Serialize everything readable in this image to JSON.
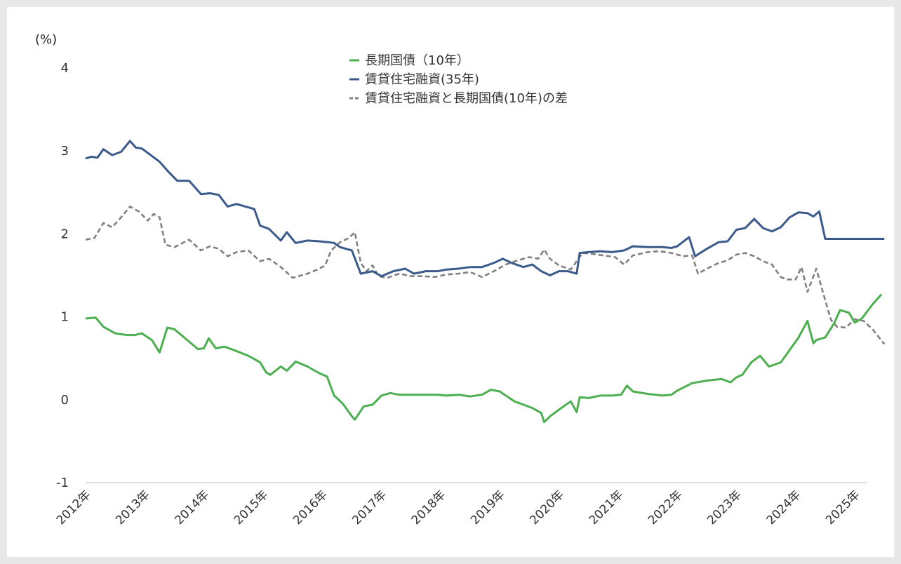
{
  "chart_data": {
    "type": "line",
    "unit_label": "(%)",
    "ylim": [
      -1,
      4
    ],
    "yticks": [
      "4",
      "3",
      "2",
      "1",
      "0",
      "-1"
    ],
    "xlim": [
      2012.0,
      2025.2
    ],
    "xticks": [
      {
        "x": 2012,
        "label": "2012年"
      },
      {
        "x": 2013,
        "label": "2013年"
      },
      {
        "x": 2014,
        "label": "2014年"
      },
      {
        "x": 2015,
        "label": "2015年"
      },
      {
        "x": 2016,
        "label": "2016年"
      },
      {
        "x": 2017,
        "label": "2017年"
      },
      {
        "x": 2018,
        "label": "2018年"
      },
      {
        "x": 2019,
        "label": "2019年"
      },
      {
        "x": 2020,
        "label": "2020年"
      },
      {
        "x": 2021,
        "label": "2021年"
      },
      {
        "x": 2022,
        "label": "2022年"
      },
      {
        "x": 2023,
        "label": "2023年"
      },
      {
        "x": 2024,
        "label": "2024年"
      },
      {
        "x": 2025,
        "label": "2025年"
      }
    ],
    "legend_position": "top-center",
    "series": [
      {
        "name": "長期国債（10年）",
        "color": "#4caf50",
        "style": "solid",
        "points": [
          [
            2012.0,
            0.98
          ],
          [
            2012.17,
            0.99
          ],
          [
            2012.3,
            0.88
          ],
          [
            2012.5,
            0.8
          ],
          [
            2012.7,
            0.78
          ],
          [
            2012.83,
            0.78
          ],
          [
            2012.95,
            0.8
          ],
          [
            2013.12,
            0.72
          ],
          [
            2013.25,
            0.57
          ],
          [
            2013.38,
            0.87
          ],
          [
            2013.5,
            0.85
          ],
          [
            2013.75,
            0.7
          ],
          [
            2013.9,
            0.61
          ],
          [
            2014.0,
            0.62
          ],
          [
            2014.08,
            0.74
          ],
          [
            2014.2,
            0.62
          ],
          [
            2014.35,
            0.64
          ],
          [
            2014.5,
            0.6
          ],
          [
            2014.75,
            0.53
          ],
          [
            2014.95,
            0.45
          ],
          [
            2015.05,
            0.33
          ],
          [
            2015.12,
            0.3
          ],
          [
            2015.3,
            0.4
          ],
          [
            2015.4,
            0.35
          ],
          [
            2015.55,
            0.46
          ],
          [
            2015.75,
            0.4
          ],
          [
            2015.95,
            0.32
          ],
          [
            2016.08,
            0.28
          ],
          [
            2016.2,
            0.05
          ],
          [
            2016.35,
            -0.05
          ],
          [
            2016.5,
            -0.2
          ],
          [
            2016.55,
            -0.24
          ],
          [
            2016.7,
            -0.08
          ],
          [
            2016.85,
            -0.06
          ],
          [
            2017.0,
            0.05
          ],
          [
            2017.15,
            0.08
          ],
          [
            2017.3,
            0.06
          ],
          [
            2017.5,
            0.06
          ],
          [
            2017.75,
            0.06
          ],
          [
            2017.95,
            0.06
          ],
          [
            2018.1,
            0.05
          ],
          [
            2018.3,
            0.06
          ],
          [
            2018.5,
            0.04
          ],
          [
            2018.7,
            0.06
          ],
          [
            2018.85,
            0.12
          ],
          [
            2019.0,
            0.1
          ],
          [
            2019.1,
            0.05
          ],
          [
            2019.25,
            -0.02
          ],
          [
            2019.4,
            -0.06
          ],
          [
            2019.55,
            -0.1
          ],
          [
            2019.7,
            -0.16
          ],
          [
            2019.75,
            -0.27
          ],
          [
            2019.85,
            -0.2
          ],
          [
            2020.0,
            -0.12
          ],
          [
            2020.2,
            -0.02
          ],
          [
            2020.3,
            -0.15
          ],
          [
            2020.35,
            0.03
          ],
          [
            2020.5,
            0.02
          ],
          [
            2020.7,
            0.05
          ],
          [
            2020.9,
            0.05
          ],
          [
            2021.05,
            0.06
          ],
          [
            2021.15,
            0.17
          ],
          [
            2021.25,
            0.1
          ],
          [
            2021.5,
            0.07
          ],
          [
            2021.75,
            0.05
          ],
          [
            2021.9,
            0.06
          ],
          [
            2022.0,
            0.11
          ],
          [
            2022.25,
            0.2
          ],
          [
            2022.5,
            0.23
          ],
          [
            2022.75,
            0.25
          ],
          [
            2022.9,
            0.21
          ],
          [
            2023.0,
            0.27
          ],
          [
            2023.1,
            0.3
          ],
          [
            2023.25,
            0.45
          ],
          [
            2023.4,
            0.53
          ],
          [
            2023.55,
            0.4
          ],
          [
            2023.75,
            0.45
          ],
          [
            2023.9,
            0.6
          ],
          [
            2024.05,
            0.75
          ],
          [
            2024.2,
            0.95
          ],
          [
            2024.3,
            0.68
          ],
          [
            2024.35,
            0.72
          ],
          [
            2024.5,
            0.75
          ],
          [
            2024.65,
            0.92
          ],
          [
            2024.75,
            1.08
          ],
          [
            2024.9,
            1.05
          ],
          [
            2025.0,
            0.93
          ],
          [
            2025.12,
            0.98
          ],
          [
            2025.3,
            1.15
          ],
          [
            2025.45,
            1.27
          ]
        ]
      },
      {
        "name": "賃貸住宅融資(35年)",
        "color": "#3b5a8c",
        "style": "solid",
        "points": [
          [
            2012.0,
            2.91
          ],
          [
            2012.1,
            2.93
          ],
          [
            2012.2,
            2.92
          ],
          [
            2012.3,
            3.02
          ],
          [
            2012.45,
            2.95
          ],
          [
            2012.6,
            2.99
          ],
          [
            2012.75,
            3.12
          ],
          [
            2012.85,
            3.04
          ],
          [
            2012.95,
            3.03
          ],
          [
            2013.1,
            2.95
          ],
          [
            2013.25,
            2.87
          ],
          [
            2013.4,
            2.75
          ],
          [
            2013.55,
            2.64
          ],
          [
            2013.75,
            2.64
          ],
          [
            2013.95,
            2.48
          ],
          [
            2014.1,
            2.49
          ],
          [
            2014.25,
            2.47
          ],
          [
            2014.4,
            2.33
          ],
          [
            2014.55,
            2.36
          ],
          [
            2014.7,
            2.33
          ],
          [
            2014.85,
            2.3
          ],
          [
            2014.95,
            2.1
          ],
          [
            2015.1,
            2.06
          ],
          [
            2015.3,
            1.92
          ],
          [
            2015.4,
            2.02
          ],
          [
            2015.55,
            1.89
          ],
          [
            2015.75,
            1.92
          ],
          [
            2015.95,
            1.91
          ],
          [
            2016.1,
            1.9
          ],
          [
            2016.2,
            1.89
          ],
          [
            2016.3,
            1.84
          ],
          [
            2016.5,
            1.8
          ],
          [
            2016.65,
            1.52
          ],
          [
            2016.85,
            1.55
          ],
          [
            2017.0,
            1.49
          ],
          [
            2017.2,
            1.55
          ],
          [
            2017.4,
            1.58
          ],
          [
            2017.55,
            1.52
          ],
          [
            2017.75,
            1.55
          ],
          [
            2017.95,
            1.55
          ],
          [
            2018.1,
            1.57
          ],
          [
            2018.3,
            1.58
          ],
          [
            2018.5,
            1.6
          ],
          [
            2018.7,
            1.6
          ],
          [
            2018.9,
            1.65
          ],
          [
            2019.05,
            1.7
          ],
          [
            2019.2,
            1.65
          ],
          [
            2019.4,
            1.6
          ],
          [
            2019.55,
            1.63
          ],
          [
            2019.7,
            1.55
          ],
          [
            2019.85,
            1.5
          ],
          [
            2020.0,
            1.55
          ],
          [
            2020.15,
            1.55
          ],
          [
            2020.3,
            1.52
          ],
          [
            2020.35,
            1.77
          ],
          [
            2020.5,
            1.78
          ],
          [
            2020.7,
            1.79
          ],
          [
            2020.9,
            1.78
          ],
          [
            2021.1,
            1.8
          ],
          [
            2021.25,
            1.85
          ],
          [
            2021.5,
            1.84
          ],
          [
            2021.75,
            1.84
          ],
          [
            2021.9,
            1.83
          ],
          [
            2022.0,
            1.85
          ],
          [
            2022.2,
            1.96
          ],
          [
            2022.3,
            1.73
          ],
          [
            2022.5,
            1.82
          ],
          [
            2022.7,
            1.9
          ],
          [
            2022.85,
            1.91
          ],
          [
            2023.0,
            2.05
          ],
          [
            2023.15,
            2.07
          ],
          [
            2023.3,
            2.18
          ],
          [
            2023.45,
            2.07
          ],
          [
            2023.6,
            2.03
          ],
          [
            2023.75,
            2.08
          ],
          [
            2023.9,
            2.2
          ],
          [
            2024.05,
            2.26
          ],
          [
            2024.2,
            2.25
          ],
          [
            2024.3,
            2.21
          ],
          [
            2024.4,
            2.27
          ],
          [
            2024.5,
            1.94
          ],
          [
            2024.75,
            1.94
          ],
          [
            2025.0,
            1.94
          ],
          [
            2025.25,
            1.94
          ],
          [
            2025.5,
            1.94
          ]
        ]
      },
      {
        "name": "賃貸住宅融資と長期国債(10年)の差",
        "color": "#808080",
        "style": "dashed",
        "points": [
          [
            2012.0,
            1.93
          ],
          [
            2012.15,
            1.95
          ],
          [
            2012.3,
            2.13
          ],
          [
            2012.45,
            2.08
          ],
          [
            2012.6,
            2.2
          ],
          [
            2012.75,
            2.33
          ],
          [
            2012.9,
            2.27
          ],
          [
            2013.05,
            2.16
          ],
          [
            2013.15,
            2.24
          ],
          [
            2013.25,
            2.2
          ],
          [
            2013.35,
            1.87
          ],
          [
            2013.5,
            1.84
          ],
          [
            2013.75,
            1.93
          ],
          [
            2013.95,
            1.8
          ],
          [
            2014.1,
            1.85
          ],
          [
            2014.25,
            1.82
          ],
          [
            2014.4,
            1.73
          ],
          [
            2014.55,
            1.78
          ],
          [
            2014.75,
            1.8
          ],
          [
            2014.95,
            1.67
          ],
          [
            2015.1,
            1.7
          ],
          [
            2015.3,
            1.6
          ],
          [
            2015.5,
            1.47
          ],
          [
            2015.75,
            1.52
          ],
          [
            2015.95,
            1.58
          ],
          [
            2016.05,
            1.62
          ],
          [
            2016.15,
            1.8
          ],
          [
            2016.3,
            1.9
          ],
          [
            2016.45,
            1.95
          ],
          [
            2016.55,
            2.02
          ],
          [
            2016.65,
            1.65
          ],
          [
            2016.75,
            1.55
          ],
          [
            2016.85,
            1.62
          ],
          [
            2016.95,
            1.49
          ],
          [
            2017.1,
            1.47
          ],
          [
            2017.3,
            1.52
          ],
          [
            2017.5,
            1.49
          ],
          [
            2017.7,
            1.49
          ],
          [
            2017.9,
            1.48
          ],
          [
            2018.1,
            1.51
          ],
          [
            2018.3,
            1.52
          ],
          [
            2018.5,
            1.54
          ],
          [
            2018.7,
            1.48
          ],
          [
            2018.9,
            1.55
          ],
          [
            2019.1,
            1.63
          ],
          [
            2019.3,
            1.68
          ],
          [
            2019.5,
            1.72
          ],
          [
            2019.65,
            1.7
          ],
          [
            2019.75,
            1.81
          ],
          [
            2019.85,
            1.7
          ],
          [
            2020.0,
            1.62
          ],
          [
            2020.2,
            1.57
          ],
          [
            2020.3,
            1.67
          ],
          [
            2020.4,
            1.77
          ],
          [
            2020.55,
            1.76
          ],
          [
            2020.75,
            1.74
          ],
          [
            2020.95,
            1.72
          ],
          [
            2021.1,
            1.63
          ],
          [
            2021.25,
            1.74
          ],
          [
            2021.5,
            1.78
          ],
          [
            2021.7,
            1.79
          ],
          [
            2021.9,
            1.77
          ],
          [
            2022.1,
            1.73
          ],
          [
            2022.25,
            1.74
          ],
          [
            2022.35,
            1.52
          ],
          [
            2022.5,
            1.58
          ],
          [
            2022.7,
            1.65
          ],
          [
            2022.85,
            1.68
          ],
          [
            2023.0,
            1.75
          ],
          [
            2023.15,
            1.77
          ],
          [
            2023.3,
            1.73
          ],
          [
            2023.45,
            1.67
          ],
          [
            2023.6,
            1.63
          ],
          [
            2023.75,
            1.48
          ],
          [
            2023.85,
            1.45
          ],
          [
            2024.0,
            1.45
          ],
          [
            2024.1,
            1.6
          ],
          [
            2024.2,
            1.3
          ],
          [
            2024.35,
            1.58
          ],
          [
            2024.5,
            1.2
          ],
          [
            2024.6,
            0.96
          ],
          [
            2024.7,
            0.88
          ],
          [
            2024.85,
            0.87
          ],
          [
            2025.0,
            0.97
          ],
          [
            2025.15,
            0.95
          ],
          [
            2025.3,
            0.85
          ],
          [
            2025.5,
            0.67
          ]
        ]
      }
    ]
  }
}
